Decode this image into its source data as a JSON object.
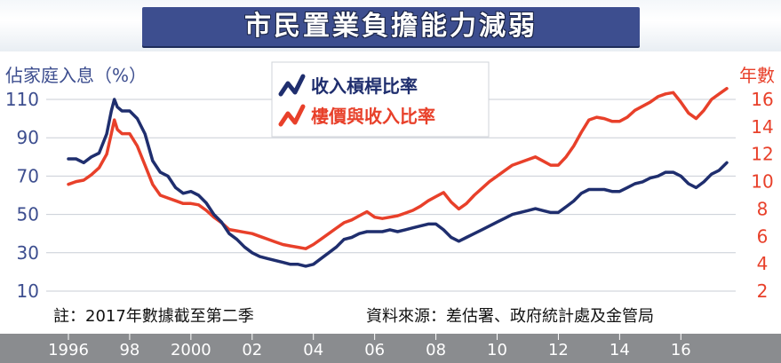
{
  "title": "市民置業負擔能力減弱",
  "note_left": "註：2017年數據截至第二季",
  "note_right": "資料來源：差估署、政府統計處及金管局",
  "colors": {
    "blue": "#1f2e6e",
    "red": "#e8402a",
    "band": "#3d4e8f",
    "axis_strip": "#8a8c8f"
  },
  "chart_data": {
    "type": "line",
    "left_axis": {
      "label": "佔家庭入息（%）",
      "ticks": [
        10,
        30,
        50,
        70,
        90,
        110
      ],
      "range": [
        10,
        110
      ]
    },
    "right_axis": {
      "label": "年數",
      "ticks": [
        2,
        4,
        6,
        8,
        10,
        12,
        14,
        16
      ],
      "range": [
        2,
        16
      ]
    },
    "x_axis": {
      "ticks": [
        "1996",
        "98",
        "2000",
        "02",
        "04",
        "06",
        "08",
        "10",
        "12",
        "14",
        "16"
      ],
      "tick_years": [
        1996,
        1998,
        2000,
        2002,
        2004,
        2006,
        2008,
        2010,
        2012,
        2014,
        2016
      ]
    },
    "legend": "top-center",
    "series": [
      {
        "name": "收入槓桿比率",
        "axis": "left",
        "color": "#1f2e6e",
        "x": [
          1996.0,
          1996.25,
          1996.5,
          1996.75,
          1997.0,
          1997.25,
          1997.4,
          1997.5,
          1997.6,
          1997.75,
          1998.0,
          1998.25,
          1998.5,
          1998.75,
          1999.0,
          1999.25,
          1999.5,
          1999.75,
          2000.0,
          2000.25,
          2000.5,
          2000.75,
          2001.0,
          2001.25,
          2001.5,
          2001.75,
          2002.0,
          2002.25,
          2002.5,
          2002.75,
          2003.0,
          2003.25,
          2003.5,
          2003.75,
          2004.0,
          2004.25,
          2004.5,
          2004.75,
          2005.0,
          2005.25,
          2005.5,
          2005.75,
          2006.0,
          2006.25,
          2006.5,
          2006.75,
          2007.0,
          2007.25,
          2007.5,
          2007.75,
          2008.0,
          2008.25,
          2008.5,
          2008.75,
          2009.0,
          2009.25,
          2009.5,
          2009.75,
          2010.0,
          2010.25,
          2010.5,
          2010.75,
          2011.0,
          2011.25,
          2011.5,
          2011.75,
          2012.0,
          2012.25,
          2012.5,
          2012.75,
          2013.0,
          2013.25,
          2013.5,
          2013.75,
          2014.0,
          2014.25,
          2014.5,
          2014.75,
          2015.0,
          2015.25,
          2015.5,
          2015.75,
          2016.0,
          2016.25,
          2016.5,
          2016.75,
          2017.0,
          2017.25,
          2017.5
        ],
        "values": [
          79,
          79,
          77,
          80,
          82,
          92,
          104,
          110,
          106,
          104,
          104,
          100,
          92,
          78,
          72,
          70,
          64,
          61,
          62,
          60,
          56,
          50,
          46,
          40,
          37,
          33,
          30,
          28,
          27,
          26,
          25,
          24,
          24,
          23,
          24,
          27,
          30,
          33,
          37,
          38,
          40,
          41,
          41,
          41,
          42,
          41,
          42,
          43,
          44,
          45,
          45,
          42,
          38,
          36,
          38,
          40,
          42,
          44,
          46,
          48,
          50,
          51,
          52,
          53,
          52,
          51,
          51,
          54,
          57,
          61,
          63,
          63,
          63,
          62,
          62,
          64,
          66,
          67,
          69,
          70,
          72,
          72,
          70,
          66,
          64,
          67,
          71,
          73,
          77
        ]
      },
      {
        "name": "樓價與收入比率",
        "axis": "right",
        "color": "#e8402a",
        "x": [
          1996.0,
          1996.25,
          1996.5,
          1996.75,
          1997.0,
          1997.25,
          1997.4,
          1997.5,
          1997.6,
          1997.75,
          1998.0,
          1998.25,
          1998.5,
          1998.75,
          1999.0,
          1999.25,
          1999.5,
          1999.75,
          2000.0,
          2000.25,
          2000.5,
          2000.75,
          2001.0,
          2001.25,
          2001.5,
          2001.75,
          2002.0,
          2002.25,
          2002.5,
          2002.75,
          2003.0,
          2003.25,
          2003.5,
          2003.75,
          2004.0,
          2004.25,
          2004.5,
          2004.75,
          2005.0,
          2005.25,
          2005.5,
          2005.75,
          2006.0,
          2006.25,
          2006.5,
          2006.75,
          2007.0,
          2007.25,
          2007.5,
          2007.75,
          2008.0,
          2008.25,
          2008.5,
          2008.75,
          2009.0,
          2009.25,
          2009.5,
          2009.75,
          2010.0,
          2010.25,
          2010.5,
          2010.75,
          2011.0,
          2011.25,
          2011.5,
          2011.75,
          2012.0,
          2012.25,
          2012.5,
          2012.75,
          2013.0,
          2013.25,
          2013.5,
          2013.75,
          2014.0,
          2014.25,
          2014.5,
          2014.75,
          2015.0,
          2015.25,
          2015.5,
          2015.75,
          2016.0,
          2016.25,
          2016.5,
          2016.75,
          2017.0,
          2017.25,
          2017.5
        ],
        "values": [
          9.8,
          10.0,
          10.1,
          10.5,
          11.0,
          12.0,
          13.5,
          14.5,
          13.8,
          13.5,
          13.5,
          12.6,
          11.2,
          9.8,
          9.0,
          8.8,
          8.6,
          8.4,
          8.4,
          8.3,
          7.9,
          7.4,
          7.0,
          6.5,
          6.4,
          6.3,
          6.2,
          6.0,
          5.8,
          5.6,
          5.4,
          5.3,
          5.2,
          5.1,
          5.4,
          5.8,
          6.2,
          6.6,
          7.0,
          7.2,
          7.5,
          7.8,
          7.4,
          7.3,
          7.4,
          7.5,
          7.7,
          7.9,
          8.2,
          8.6,
          8.9,
          9.2,
          8.5,
          8.0,
          8.4,
          9.0,
          9.5,
          10.0,
          10.4,
          10.8,
          11.2,
          11.4,
          11.6,
          11.8,
          11.5,
          11.2,
          11.2,
          11.8,
          12.6,
          13.6,
          14.5,
          14.7,
          14.6,
          14.4,
          14.4,
          14.7,
          15.2,
          15.5,
          15.8,
          16.2,
          16.4,
          16.5,
          15.8,
          15.0,
          14.6,
          15.2,
          16.0,
          16.4,
          16.8
        ]
      }
    ]
  }
}
